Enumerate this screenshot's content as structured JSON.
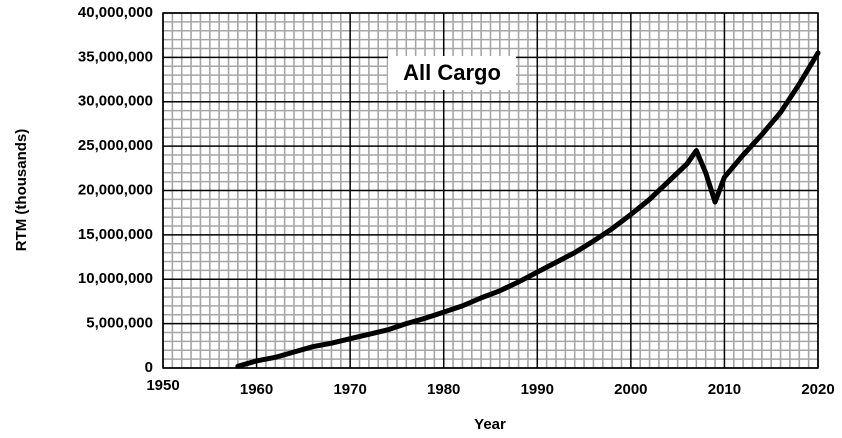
{
  "chart_data": {
    "type": "line",
    "title": "All Cargo",
    "xlabel": "Year",
    "ylabel": "RTM (thousands)",
    "x": [
      1958,
      1960,
      1962,
      1964,
      1966,
      1968,
      1970,
      1972,
      1974,
      1976,
      1978,
      1980,
      1982,
      1984,
      1986,
      1988,
      1990,
      1992,
      1994,
      1996,
      1998,
      2000,
      2002,
      2004,
      2006,
      2007,
      2008,
      2009,
      2010,
      2012,
      2014,
      2016,
      2018,
      2020
    ],
    "series": [
      {
        "name": "All Cargo",
        "color": "#000000",
        "values": [
          200000,
          800000,
          1200000,
          1800000,
          2400000,
          2800000,
          3300000,
          3800000,
          4300000,
          5000000,
          5600000,
          6300000,
          7000000,
          7900000,
          8700000,
          9700000,
          10800000,
          11900000,
          13000000,
          14300000,
          15700000,
          17300000,
          19000000,
          21000000,
          23000000,
          24500000,
          22000000,
          18700000,
          21500000,
          24000000,
          26300000,
          28800000,
          32000000,
          35500000
        ]
      }
    ],
    "xlim": [
      1950,
      2020
    ],
    "xticks": [
      1950,
      1960,
      1970,
      1980,
      1990,
      2000,
      2010,
      2020
    ],
    "ylim": [
      0,
      40000000
    ],
    "yticks": [
      0,
      {
        "value": 5000000,
        "label": "5,000,000"
      },
      {
        "value": 10000000,
        "label": "10,000,000"
      },
      {
        "value": 15000000,
        "label": "15,000,000"
      },
      {
        "value": 20000000,
        "label": "20,000,000"
      },
      {
        "value": 25000000,
        "label": "25,000,000"
      },
      {
        "value": 30000000,
        "label": "30,000,000"
      },
      {
        "value": 35000000,
        "label": "35,000,000"
      },
      {
        "value": 40000000,
        "label": "40,000,000"
      }
    ],
    "grid": true
  }
}
